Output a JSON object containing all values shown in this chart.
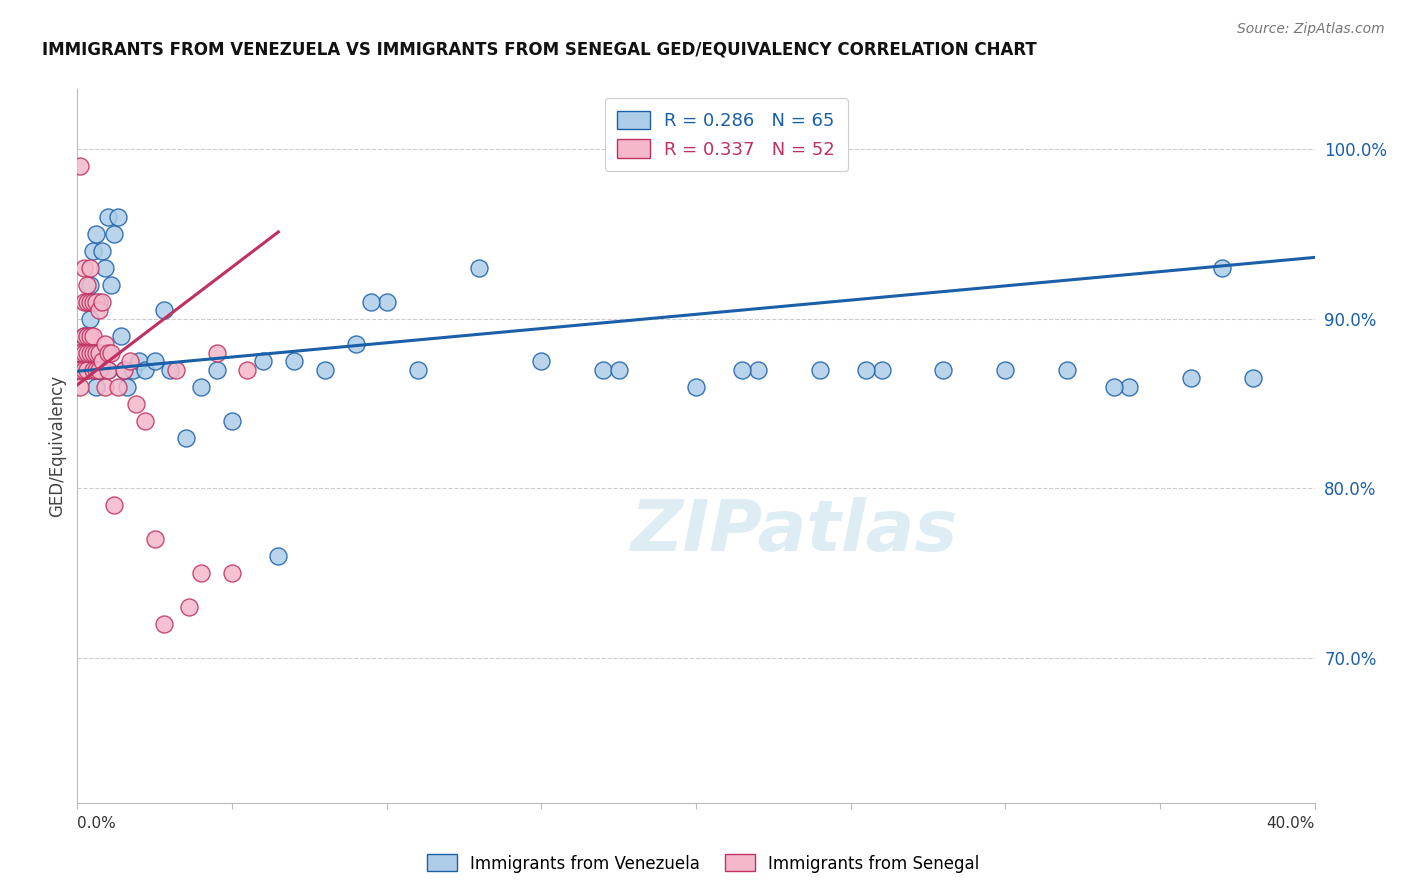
{
  "title": "IMMIGRANTS FROM VENEZUELA VS IMMIGRANTS FROM SENEGAL GED/EQUIVALENCY CORRELATION CHART",
  "source": "Source: ZipAtlas.com",
  "ylabel": "GED/Equivalency",
  "ylabel_right_ticks": [
    "70.0%",
    "80.0%",
    "90.0%",
    "100.0%"
  ],
  "ylabel_right_values": [
    0.7,
    0.8,
    0.9,
    1.0
  ],
  "xlim": [
    0.0,
    0.4
  ],
  "ylim": [
    0.615,
    1.035
  ],
  "color_venezuela": "#aecde8",
  "color_senegal": "#f5b8cb",
  "line_color_venezuela": "#1a5fa8",
  "line_color_senegal": "#c03060",
  "background_color": "#ffffff",
  "grid_color": "#cccccc",
  "venezuela_x": [
    0.001,
    0.001,
    0.002,
    0.002,
    0.003,
    0.003,
    0.003,
    0.004,
    0.004,
    0.004,
    0.005,
    0.005,
    0.006,
    0.006,
    0.006,
    0.007,
    0.007,
    0.008,
    0.008,
    0.009,
    0.009,
    0.01,
    0.01,
    0.011,
    0.012,
    0.013,
    0.014,
    0.015,
    0.016,
    0.018,
    0.02,
    0.022,
    0.025,
    0.028,
    0.03,
    0.035,
    0.04,
    0.045,
    0.05,
    0.06,
    0.065,
    0.07,
    0.08,
    0.09,
    0.1,
    0.11,
    0.13,
    0.15,
    0.17,
    0.2,
    0.22,
    0.24,
    0.26,
    0.28,
    0.3,
    0.32,
    0.34,
    0.36,
    0.37,
    0.38,
    0.095,
    0.175,
    0.215,
    0.255,
    0.335
  ],
  "venezuela_y": [
    0.87,
    0.88,
    0.89,
    0.87,
    0.91,
    0.88,
    0.87,
    0.92,
    0.9,
    0.88,
    0.94,
    0.87,
    0.87,
    0.86,
    0.95,
    0.91,
    0.88,
    0.94,
    0.87,
    0.93,
    0.88,
    0.96,
    0.87,
    0.92,
    0.95,
    0.96,
    0.89,
    0.87,
    0.86,
    0.87,
    0.875,
    0.87,
    0.875,
    0.905,
    0.87,
    0.83,
    0.86,
    0.87,
    0.84,
    0.875,
    0.76,
    0.875,
    0.87,
    0.885,
    0.91,
    0.87,
    0.93,
    0.875,
    0.87,
    0.86,
    0.87,
    0.87,
    0.87,
    0.87,
    0.87,
    0.87,
    0.86,
    0.865,
    0.93,
    0.865,
    0.91,
    0.87,
    0.87,
    0.87,
    0.86
  ],
  "senegal_x": [
    0.001,
    0.001,
    0.001,
    0.001,
    0.001,
    0.001,
    0.001,
    0.002,
    0.002,
    0.002,
    0.002,
    0.002,
    0.003,
    0.003,
    0.003,
    0.003,
    0.003,
    0.004,
    0.004,
    0.004,
    0.004,
    0.005,
    0.005,
    0.005,
    0.005,
    0.006,
    0.006,
    0.006,
    0.007,
    0.007,
    0.007,
    0.008,
    0.008,
    0.009,
    0.009,
    0.01,
    0.01,
    0.011,
    0.012,
    0.013,
    0.015,
    0.017,
    0.019,
    0.022,
    0.025,
    0.028,
    0.032,
    0.036,
    0.04,
    0.045,
    0.05,
    0.055
  ],
  "senegal_y": [
    0.87,
    0.88,
    0.88,
    0.87,
    0.86,
    0.87,
    0.99,
    0.93,
    0.91,
    0.89,
    0.87,
    0.88,
    0.92,
    0.91,
    0.89,
    0.87,
    0.88,
    0.93,
    0.91,
    0.89,
    0.88,
    0.91,
    0.89,
    0.87,
    0.88,
    0.91,
    0.88,
    0.87,
    0.905,
    0.88,
    0.87,
    0.91,
    0.875,
    0.885,
    0.86,
    0.88,
    0.87,
    0.88,
    0.79,
    0.86,
    0.87,
    0.875,
    0.85,
    0.84,
    0.77,
    0.72,
    0.87,
    0.73,
    0.75,
    0.88,
    0.75,
    0.87
  ],
  "senegal_line_x": [
    0.0,
    0.065
  ],
  "ven_line_x": [
    0.0,
    0.4
  ],
  "ven_line_y": [
    0.869,
    0.936
  ],
  "sen_line_y": [
    0.861,
    0.951
  ]
}
